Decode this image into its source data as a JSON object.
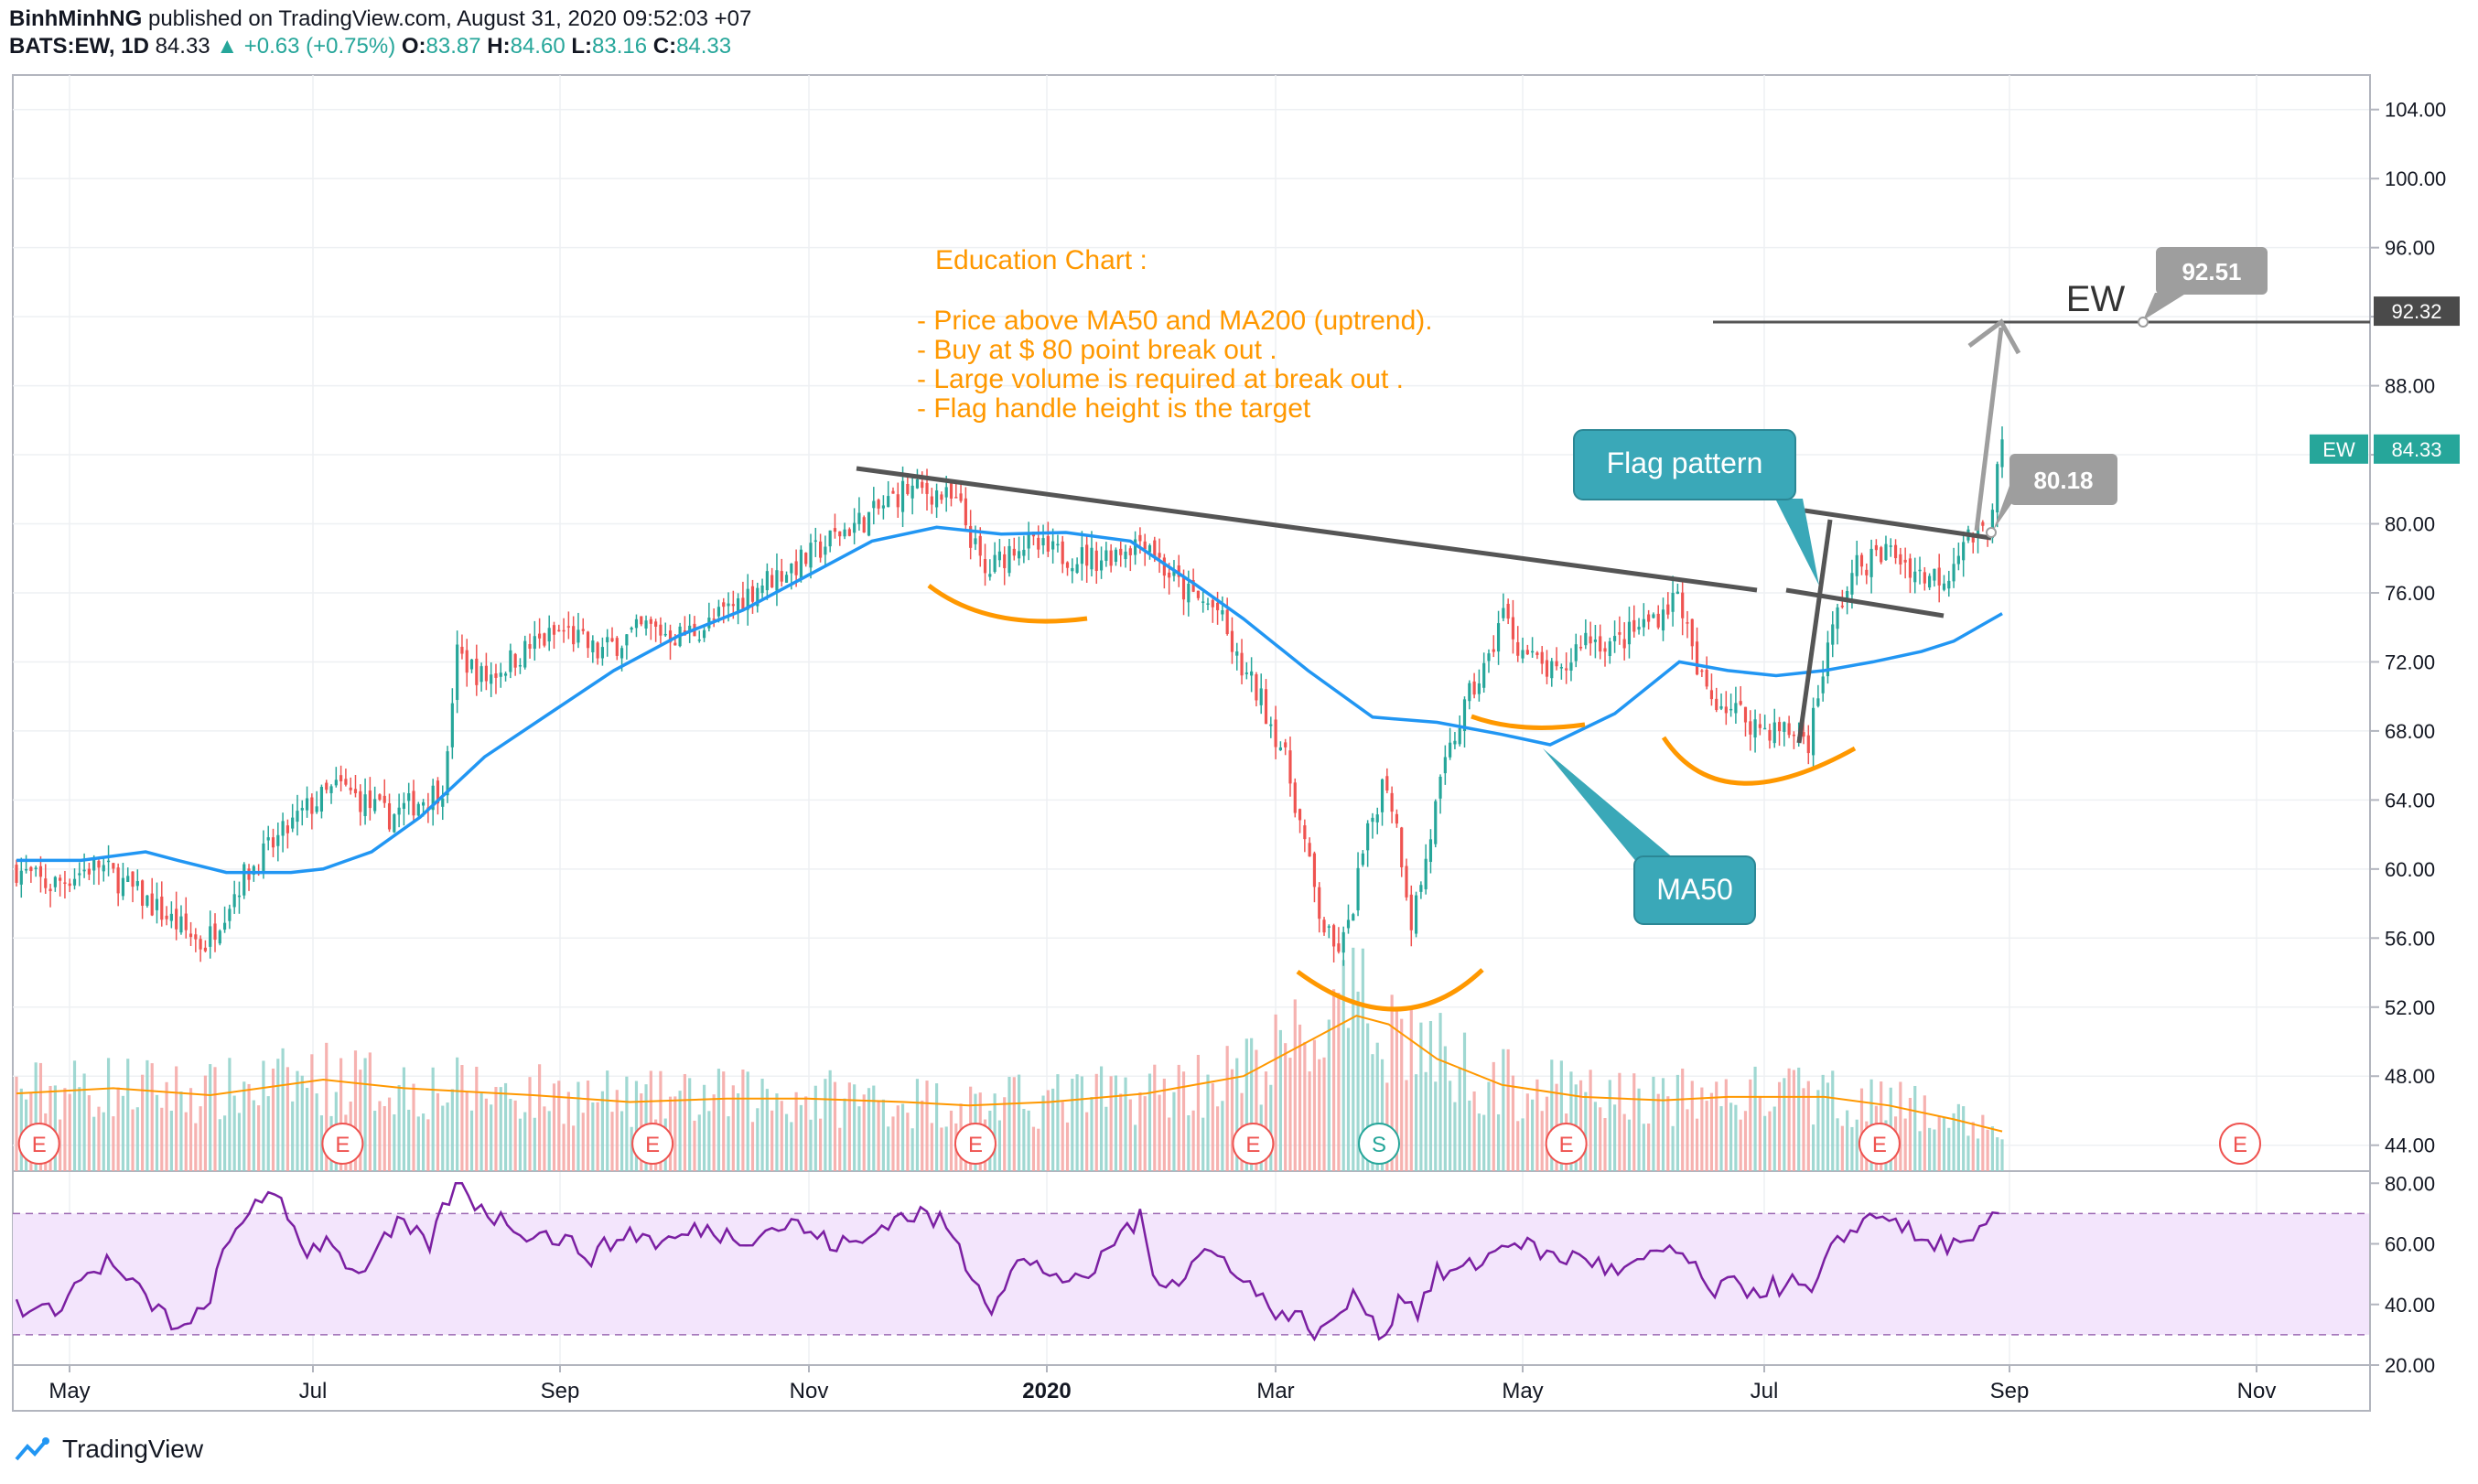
{
  "header": {
    "author": "BinhMinhNG",
    "published": "published on TradingView.com, August 31, 2020 09:52:03 +07",
    "symbol": "BATS:EW, 1D",
    "last": "84.33",
    "arrow": "▲",
    "change": "+0.63 (+0.75%)",
    "o_label": "O:",
    "o": "83.87",
    "h_label": "H:",
    "h": "84.60",
    "l_label": "L:",
    "l": "83.16",
    "c_label": "C:",
    "c": "84.33"
  },
  "footer": {
    "brand": "TradingView"
  },
  "colors": {
    "up": "#26a69a",
    "down": "#ef5350",
    "ma": "#2196f3",
    "curve": "#ff9800",
    "trend": "#4a4a4a",
    "callout": "#3aa8b8",
    "rsi": "#7b1fa2",
    "rsi_band": "#f3e5fc"
  },
  "chart_data": {
    "type": "candlestick",
    "price_axis": {
      "min": 42.5,
      "max": 106,
      "ticks": [
        "104.00",
        "100.00",
        "96.00",
        "92.00",
        "88.00",
        "84.00",
        "80.00",
        "76.00",
        "72.00",
        "68.00",
        "64.00",
        "60.00",
        "56.00",
        "52.00",
        "48.00",
        "44.00"
      ]
    },
    "rsi_axis": {
      "min": 20,
      "max": 84,
      "ticks": [
        "80.00",
        "60.00",
        "40.00",
        "20.00"
      ],
      "upper_band": 70,
      "lower_band": 30
    },
    "time_axis": [
      "May",
      "Jul",
      "Sep",
      "Nov",
      "2020",
      "Mar",
      "May",
      "Jul",
      "Sep",
      "Nov"
    ],
    "price_labels": [
      {
        "text": "92.32",
        "value": 92.32,
        "style": "dark"
      },
      {
        "text": "EW",
        "value": 84.33,
        "style": "green-name"
      },
      {
        "text": "84.33",
        "value": 84.33,
        "style": "green"
      }
    ],
    "close_path": [
      [
        0,
        60
      ],
      [
        10,
        59
      ],
      [
        25,
        60.3
      ],
      [
        40,
        58.2
      ],
      [
        55,
        56
      ],
      [
        58,
        55.5
      ],
      [
        70,
        59.5
      ],
      [
        90,
        63.5
      ],
      [
        100,
        64.8
      ],
      [
        115,
        63
      ],
      [
        130,
        64.5
      ],
      [
        133,
        65
      ],
      [
        136,
        72.5
      ],
      [
        145,
        71
      ],
      [
        160,
        73
      ],
      [
        170,
        73.8
      ],
      [
        180,
        72.5
      ],
      [
        195,
        74
      ],
      [
        205,
        73.5
      ],
      [
        215,
        74.2
      ],
      [
        230,
        76.5
      ],
      [
        245,
        78
      ],
      [
        255,
        79.5
      ],
      [
        265,
        80.5
      ],
      [
        275,
        82
      ],
      [
        285,
        81.8
      ],
      [
        292,
        81
      ],
      [
        300,
        77
      ],
      [
        310,
        79
      ],
      [
        320,
        78.3
      ],
      [
        335,
        78
      ],
      [
        345,
        78.8
      ],
      [
        350,
        79.3
      ],
      [
        355,
        77.5
      ],
      [
        362,
        76
      ],
      [
        372,
        75
      ],
      [
        378,
        72
      ],
      [
        385,
        70
      ],
      [
        392,
        67
      ],
      [
        396,
        64
      ],
      [
        400,
        60.5
      ],
      [
        404,
        57
      ],
      [
        408,
        55.3
      ],
      [
        412,
        56
      ],
      [
        416,
        60
      ],
      [
        420,
        63
      ],
      [
        424,
        65.5
      ],
      [
        428,
        62
      ],
      [
        432,
        57
      ],
      [
        436,
        60
      ],
      [
        440,
        64
      ],
      [
        445,
        67.5
      ],
      [
        450,
        70
      ],
      [
        456,
        72
      ],
      [
        460,
        75
      ],
      [
        465,
        73
      ],
      [
        470,
        72
      ],
      [
        478,
        71
      ],
      [
        485,
        73.5
      ],
      [
        495,
        73
      ],
      [
        505,
        74.3
      ],
      [
        510,
        75
      ],
      [
        515,
        76
      ],
      [
        520,
        71.5
      ],
      [
        525,
        70
      ],
      [
        530,
        69.5
      ],
      [
        540,
        68.2
      ],
      [
        548,
        68
      ],
      [
        555,
        67.5
      ],
      [
        560,
        72
      ],
      [
        565,
        75.5
      ],
      [
        570,
        77.5
      ],
      [
        580,
        78.5
      ],
      [
        590,
        77
      ],
      [
        598,
        77
      ],
      [
        602,
        79
      ],
      [
        610,
        79.5
      ],
      [
        615,
        84.33
      ]
    ],
    "ma50_path": [
      [
        0,
        60.5
      ],
      [
        20,
        60.5
      ],
      [
        40,
        61
      ],
      [
        50,
        60.5
      ],
      [
        65,
        59.8
      ],
      [
        85,
        59.8
      ],
      [
        95,
        60
      ],
      [
        110,
        61
      ],
      [
        125,
        63
      ],
      [
        145,
        66.5
      ],
      [
        165,
        69
      ],
      [
        185,
        71.5
      ],
      [
        205,
        73.5
      ],
      [
        225,
        75
      ],
      [
        245,
        77
      ],
      [
        265,
        79
      ],
      [
        285,
        79.8
      ],
      [
        305,
        79.4
      ],
      [
        325,
        79.5
      ],
      [
        345,
        79
      ],
      [
        365,
        76.5
      ],
      [
        380,
        74.5
      ],
      [
        400,
        71.5
      ],
      [
        420,
        68.8
      ],
      [
        440,
        68.5
      ],
      [
        460,
        67.8
      ],
      [
        475,
        67.2
      ],
      [
        495,
        69
      ],
      [
        515,
        72
      ],
      [
        530,
        71.5
      ],
      [
        545,
        71.2
      ],
      [
        560,
        71.5
      ],
      [
        575,
        72
      ],
      [
        590,
        72.6
      ],
      [
        600,
        73.2
      ],
      [
        615,
        74.8
      ]
    ],
    "volume_ma_path": [
      [
        0,
        47
      ],
      [
        30,
        47.3
      ],
      [
        60,
        46.9
      ],
      [
        95,
        47.8
      ],
      [
        120,
        47.3
      ],
      [
        160,
        46.9
      ],
      [
        190,
        46.5
      ],
      [
        220,
        46.7
      ],
      [
        245,
        46.7
      ],
      [
        275,
        46.5
      ],
      [
        295,
        46.3
      ],
      [
        320,
        46.5
      ],
      [
        350,
        47
      ],
      [
        380,
        48
      ],
      [
        400,
        50
      ],
      [
        415,
        51.5
      ],
      [
        425,
        51
      ],
      [
        440,
        49
      ],
      [
        460,
        47.5
      ],
      [
        485,
        46.8
      ],
      [
        510,
        46.6
      ],
      [
        530,
        46.8
      ],
      [
        560,
        46.8
      ],
      [
        580,
        46.3
      ],
      [
        600,
        45.5
      ],
      [
        615,
        44.8
      ]
    ],
    "rsi_path": [
      [
        0,
        40
      ],
      [
        10,
        37
      ],
      [
        20,
        48
      ],
      [
        28,
        54
      ],
      [
        38,
        44
      ],
      [
        45,
        37
      ],
      [
        52,
        31
      ],
      [
        58,
        38
      ],
      [
        65,
        58
      ],
      [
        75,
        77
      ],
      [
        82,
        72
      ],
      [
        90,
        58
      ],
      [
        98,
        62
      ],
      [
        104,
        50
      ],
      [
        110,
        55
      ],
      [
        118,
        66
      ],
      [
        128,
        60
      ],
      [
        133,
        73
      ],
      [
        136,
        80
      ],
      [
        142,
        74
      ],
      [
        148,
        69
      ],
      [
        158,
        64
      ],
      [
        168,
        62
      ],
      [
        178,
        56
      ],
      [
        190,
        64
      ],
      [
        200,
        60
      ],
      [
        212,
        65
      ],
      [
        225,
        62
      ],
      [
        240,
        67
      ],
      [
        252,
        60
      ],
      [
        262,
        60
      ],
      [
        270,
        68
      ],
      [
        280,
        70
      ],
      [
        288,
        66
      ],
      [
        295,
        52
      ],
      [
        302,
        40
      ],
      [
        310,
        54
      ],
      [
        320,
        51
      ],
      [
        330,
        46
      ],
      [
        342,
        64
      ],
      [
        348,
        68
      ],
      [
        352,
        50
      ],
      [
        360,
        48
      ],
      [
        368,
        58
      ],
      [
        378,
        52
      ],
      [
        385,
        42
      ],
      [
        392,
        37
      ],
      [
        398,
        35
      ],
      [
        404,
        30
      ],
      [
        410,
        38
      ],
      [
        416,
        43
      ],
      [
        420,
        36
      ],
      [
        424,
        28
      ],
      [
        428,
        44
      ],
      [
        434,
        38
      ],
      [
        440,
        50
      ],
      [
        448,
        51
      ],
      [
        456,
        56
      ],
      [
        464,
        62
      ],
      [
        470,
        58
      ],
      [
        478,
        55
      ],
      [
        486,
        56
      ],
      [
        495,
        50
      ],
      [
        505,
        54
      ],
      [
        512,
        59
      ],
      [
        518,
        54
      ],
      [
        524,
        44
      ],
      [
        530,
        46
      ],
      [
        540,
        45
      ],
      [
        550,
        47
      ],
      [
        556,
        43
      ],
      [
        562,
        57
      ],
      [
        570,
        67
      ],
      [
        580,
        70
      ],
      [
        590,
        60
      ],
      [
        598,
        60
      ],
      [
        604,
        58
      ],
      [
        610,
        65
      ],
      [
        615,
        73
      ]
    ],
    "bar_range": [
      0,
      615
    ],
    "events": [
      {
        "letter": "E",
        "bar": 7
      },
      {
        "letter": "E",
        "bar": 101
      },
      {
        "letter": "E",
        "bar": 197
      },
      {
        "letter": "E",
        "bar": 297
      },
      {
        "letter": "E",
        "bar": 383
      },
      {
        "letter": "S",
        "bar": 422
      },
      {
        "letter": "E",
        "bar": 480
      },
      {
        "letter": "E",
        "bar": 577
      }
    ]
  },
  "annotations": {
    "text_block": [
      "Education Chart :",
      "",
      "- Price above MA50 and MA200 (uptrend).",
      "- Buy at $ 80 point break out .",
      "- Large volume is required at break out .",
      "- Flag handle height is the target"
    ],
    "flag_pattern": "Flag pattern",
    "ma50": "MA50",
    "target_value": "92.51",
    "breakout_value": "80.18",
    "target_ticker": "EW"
  }
}
